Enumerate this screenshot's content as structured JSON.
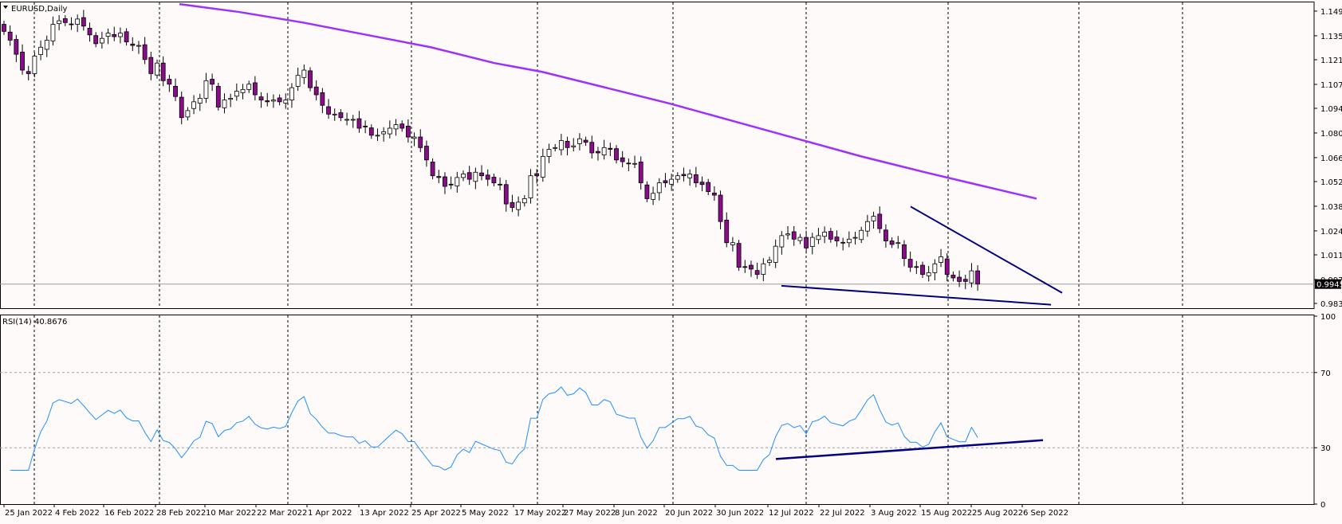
{
  "symbol_title": "EURUSD,Daily",
  "indicator_title": "RSI(14) 40.8676",
  "current_price_label": "0.99450",
  "colors": {
    "background": "#fffafa",
    "bull_body": "#ffffff",
    "bear_body": "#8b0c8b",
    "wick": "#000000",
    "ma": "#9b30ff",
    "trendline": "#000080",
    "rsi_line": "#1e90ff",
    "separator": "#000000"
  },
  "chart_data": [
    {
      "type": "candlestick",
      "title": "EURUSD,Daily",
      "ylim": [
        0.9808,
        1.154
      ],
      "price_ticks": [
        "1.14950",
        "1.13550",
        "1.12190",
        "1.10790",
        "1.09430",
        "1.08030",
        "1.06630",
        "1.05270",
        "1.03870",
        "1.02470",
        "1.01110",
        "0.99710",
        "0.98350"
      ],
      "date_labels": [
        "25 Jan 2022",
        "4 Feb 2022",
        "16 Feb 2022",
        "28 Feb 2022",
        "10 Mar 2022",
        "22 Mar 2022",
        "1 Apr 2022",
        "13 Apr 2022",
        "25 Apr 2022",
        "5 May 2022",
        "17 May 2022",
        "27 May 2022",
        "8 Jun 2022",
        "20 Jun 2022",
        "30 Jun 2022",
        "12 Jul 2022",
        "22 Jul 2022",
        "3 Aug 2022",
        "15 Aug 2022",
        "25 Aug 2022",
        "6 Sep 2022"
      ],
      "candles_close": [
        1.138,
        1.133,
        1.125,
        1.116,
        1.114,
        1.124,
        1.129,
        1.133,
        1.142,
        1.144,
        1.143,
        1.142,
        1.145,
        1.141,
        1.136,
        1.131,
        1.134,
        1.137,
        1.135,
        1.137,
        1.132,
        1.13,
        1.13,
        1.122,
        1.114,
        1.12,
        1.11,
        1.108,
        1.101,
        1.089,
        1.093,
        1.098,
        1.1,
        1.11,
        1.108,
        1.095,
        1.099,
        1.1,
        1.104,
        1.105,
        1.108,
        1.102,
        1.099,
        1.098,
        1.099,
        1.098,
        1.099,
        1.106,
        1.113,
        1.116,
        1.106,
        1.102,
        1.096,
        1.091,
        1.091,
        1.089,
        1.088,
        1.088,
        1.083,
        1.084,
        1.079,
        1.079,
        1.081,
        1.083,
        1.085,
        1.083,
        1.078,
        1.078,
        1.072,
        1.065,
        1.056,
        1.055,
        1.05,
        1.051,
        1.055,
        1.057,
        1.054,
        1.058,
        1.056,
        1.054,
        1.052,
        1.051,
        1.04,
        1.038,
        1.041,
        1.043,
        1.056,
        1.056,
        1.067,
        1.071,
        1.072,
        1.076,
        1.072,
        1.073,
        1.077,
        1.075,
        1.069,
        1.069,
        1.072,
        1.071,
        1.065,
        1.064,
        1.063,
        1.063,
        1.052,
        1.043,
        1.046,
        1.052,
        1.052,
        1.054,
        1.056,
        1.056,
        1.057,
        1.052,
        1.051,
        1.047,
        1.045,
        1.03,
        1.018,
        1.018,
        1.004,
        1.004,
        1.003,
        1.0,
        1.006,
        1.008,
        1.016,
        1.022,
        1.023,
        1.02,
        1.021,
        1.015,
        1.021,
        1.022,
        1.024,
        1.02,
        1.019,
        1.018,
        1.02,
        1.021,
        1.025,
        1.03,
        1.033,
        1.026,
        1.019,
        1.017,
        1.018,
        1.009,
        1.004,
        1.004,
        1.0,
        1.001,
        1.006,
        1.01,
        1.0,
        0.998,
        0.996,
        0.996,
        1.002,
        0.9945
      ]
    },
    {
      "type": "line",
      "title": "RSI(14) 40.8676",
      "ylim": [
        0,
        100
      ],
      "ticks": [
        "100",
        "70",
        "30",
        "0"
      ],
      "levels": [
        70,
        30
      ],
      "last_value": 40.8676
    }
  ]
}
